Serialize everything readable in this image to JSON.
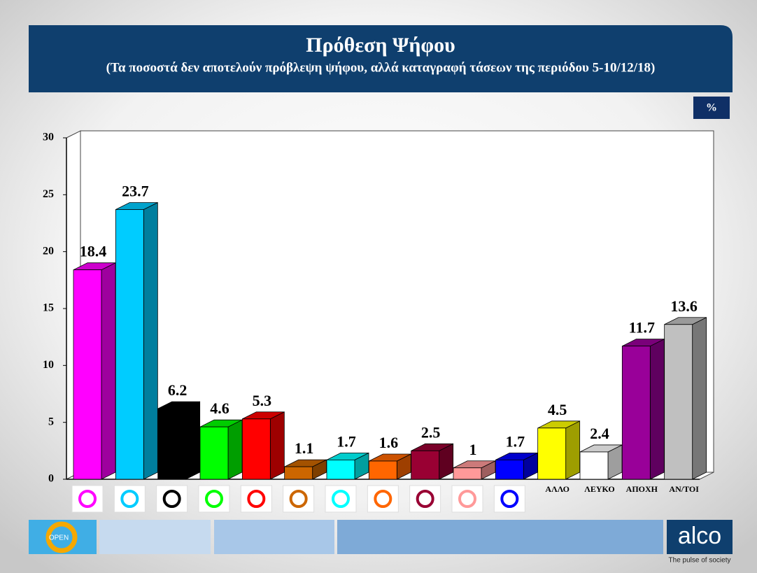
{
  "chart_data": {
    "type": "bar3d",
    "title": "Πρόθεση Ψήφου",
    "subtitle": "(Τα ποσοστά δεν αποτελούν πρόβλεψη ψήφου, αλλά καταγραφή τάσεων της περιόδου 5-10/12/18)",
    "unit_label": "%",
    "categories": [
      null,
      null,
      null,
      null,
      null,
      null,
      null,
      null,
      null,
      null,
      null,
      "ΑΛΛΟ",
      "ΛΕΥΚΟ",
      "ΑΠΟΧΗ",
      "ΑΝ/ΤΟΙ"
    ],
    "values": [
      18.4,
      23.7,
      6.2,
      4.6,
      5.3,
      1.1,
      1.7,
      1.6,
      2.5,
      1,
      1.7,
      4.5,
      2.4,
      11.7,
      13.6
    ],
    "colors": [
      "#ff00ff",
      "#00ccff",
      "#000000",
      "#00ff00",
      "#ff0000",
      "#cc6600",
      "#00ffff",
      "#ff6600",
      "#990033",
      "#ff9999",
      "#0000ff",
      "#ffff00",
      "#ffffff",
      "#990099",
      "#c0c0c0"
    ],
    "ylim": [
      0,
      30
    ],
    "yticks": [
      0,
      5,
      10,
      15,
      20,
      25,
      30
    ],
    "grid": false
  },
  "footer": {
    "channel": "OPEN",
    "brand": "alco",
    "tagline": "The pulse of society"
  }
}
